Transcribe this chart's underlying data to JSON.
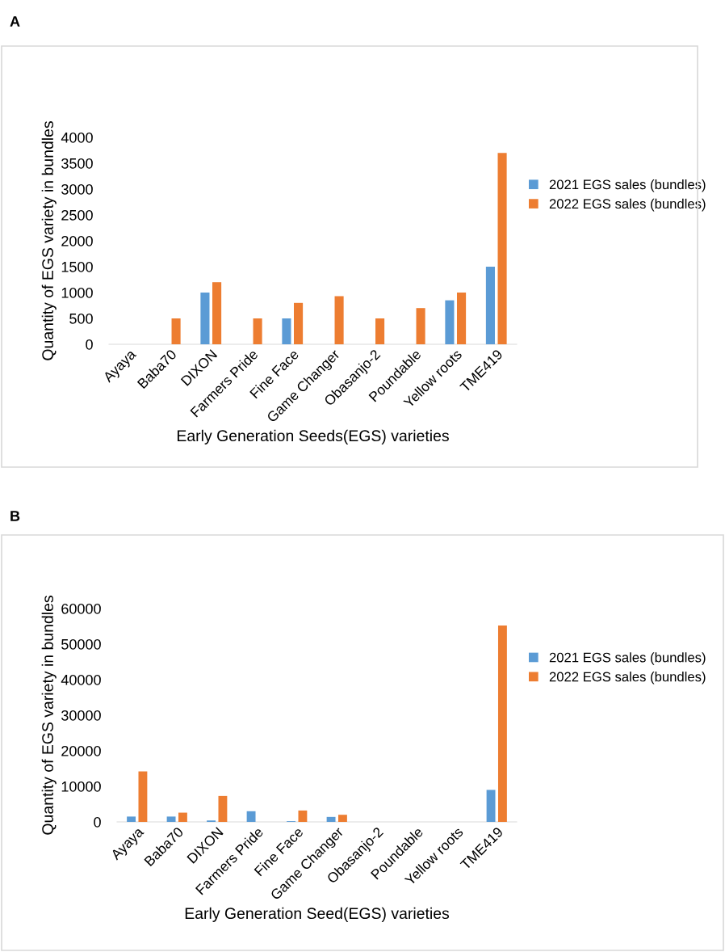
{
  "chart_data": [
    {
      "type": "bar",
      "annotations": [
        "A"
      ],
      "xlabel": "Early Generation Seeds(EGS) varieties",
      "ylabel": "Quantity of EGS variety in bundles",
      "categories": [
        "Ayaya",
        "Baba70",
        "DIXON",
        "Farmers Pride",
        "Fine Face",
        "Game Changer",
        "Obasanjo-2",
        "Poundable",
        "Yellow roots",
        "TME419"
      ],
      "series": [
        {
          "name": "2021 EGS sales (bundles)",
          "color": "#5b9bd5",
          "values": [
            0,
            0,
            1000,
            0,
            500,
            0,
            0,
            0,
            850,
            1500
          ]
        },
        {
          "name": "2022 EGS sales (bundles)",
          "color": "#ed7d31",
          "values": [
            0,
            500,
            1200,
            500,
            800,
            930,
            500,
            700,
            1000,
            3700
          ]
        }
      ],
      "ylim": [
        0,
        4000
      ],
      "yticks": [
        0,
        500,
        1000,
        1500,
        2000,
        2500,
        3000,
        3500,
        4000
      ],
      "grid": false,
      "legend": "right"
    },
    {
      "type": "bar",
      "annotations": [
        "B"
      ],
      "xlabel": "Early Generation Seed(EGS) varieties",
      "ylabel": "Quantity of EGS variety in bundles",
      "categories": [
        "Ayaya",
        "Baba70",
        "DIXON",
        "Farmers Pride",
        "Fine Face",
        "Game Changer",
        "Obasanjo-2",
        "Poundable",
        "Yellow roots",
        "TME419"
      ],
      "series": [
        {
          "name": "2021 EGS sales (bundles)",
          "color": "#5b9bd5",
          "values": [
            1500,
            1500,
            400,
            3000,
            200,
            1400,
            0,
            0,
            0,
            9000
          ]
        },
        {
          "name": "2022 EGS sales (bundles)",
          "color": "#ed7d31",
          "values": [
            14200,
            2600,
            7300,
            0,
            3200,
            2000,
            0,
            0,
            0,
            55200
          ]
        }
      ],
      "ylim": [
        0,
        60000
      ],
      "yticks": [
        0,
        10000,
        20000,
        30000,
        40000,
        50000,
        60000
      ],
      "grid": false,
      "legend": "right"
    }
  ]
}
